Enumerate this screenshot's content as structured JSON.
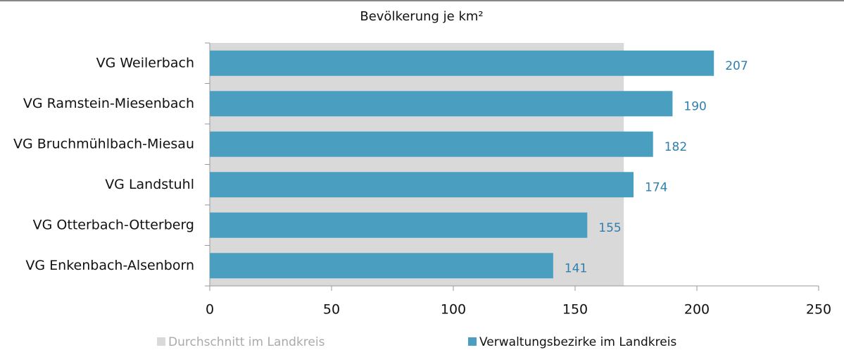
{
  "chart_data": {
    "type": "bar",
    "orientation": "horizontal",
    "title": "Bevölkerung je km²",
    "categories": [
      "VG Weilerbach",
      "VG Ramstein-Miesenbach",
      "VG Bruchmühlbach-Miesau",
      "VG Landstuhl",
      "VG Otterbach-Otterberg",
      "VG Enkenbach-Alsenborn"
    ],
    "series": [
      {
        "name": "Verwaltungsbezirke im Landkreis",
        "color": "#4a9fc1",
        "values": [
          207,
          190,
          182,
          174,
          155,
          141
        ]
      }
    ],
    "average": {
      "name": "Durchschnitt im Landkreis",
      "color": "#d9d9d9",
      "value": 170
    },
    "xlim": [
      0,
      250
    ],
    "xticks": [
      0,
      50,
      100,
      150,
      200,
      250
    ]
  }
}
